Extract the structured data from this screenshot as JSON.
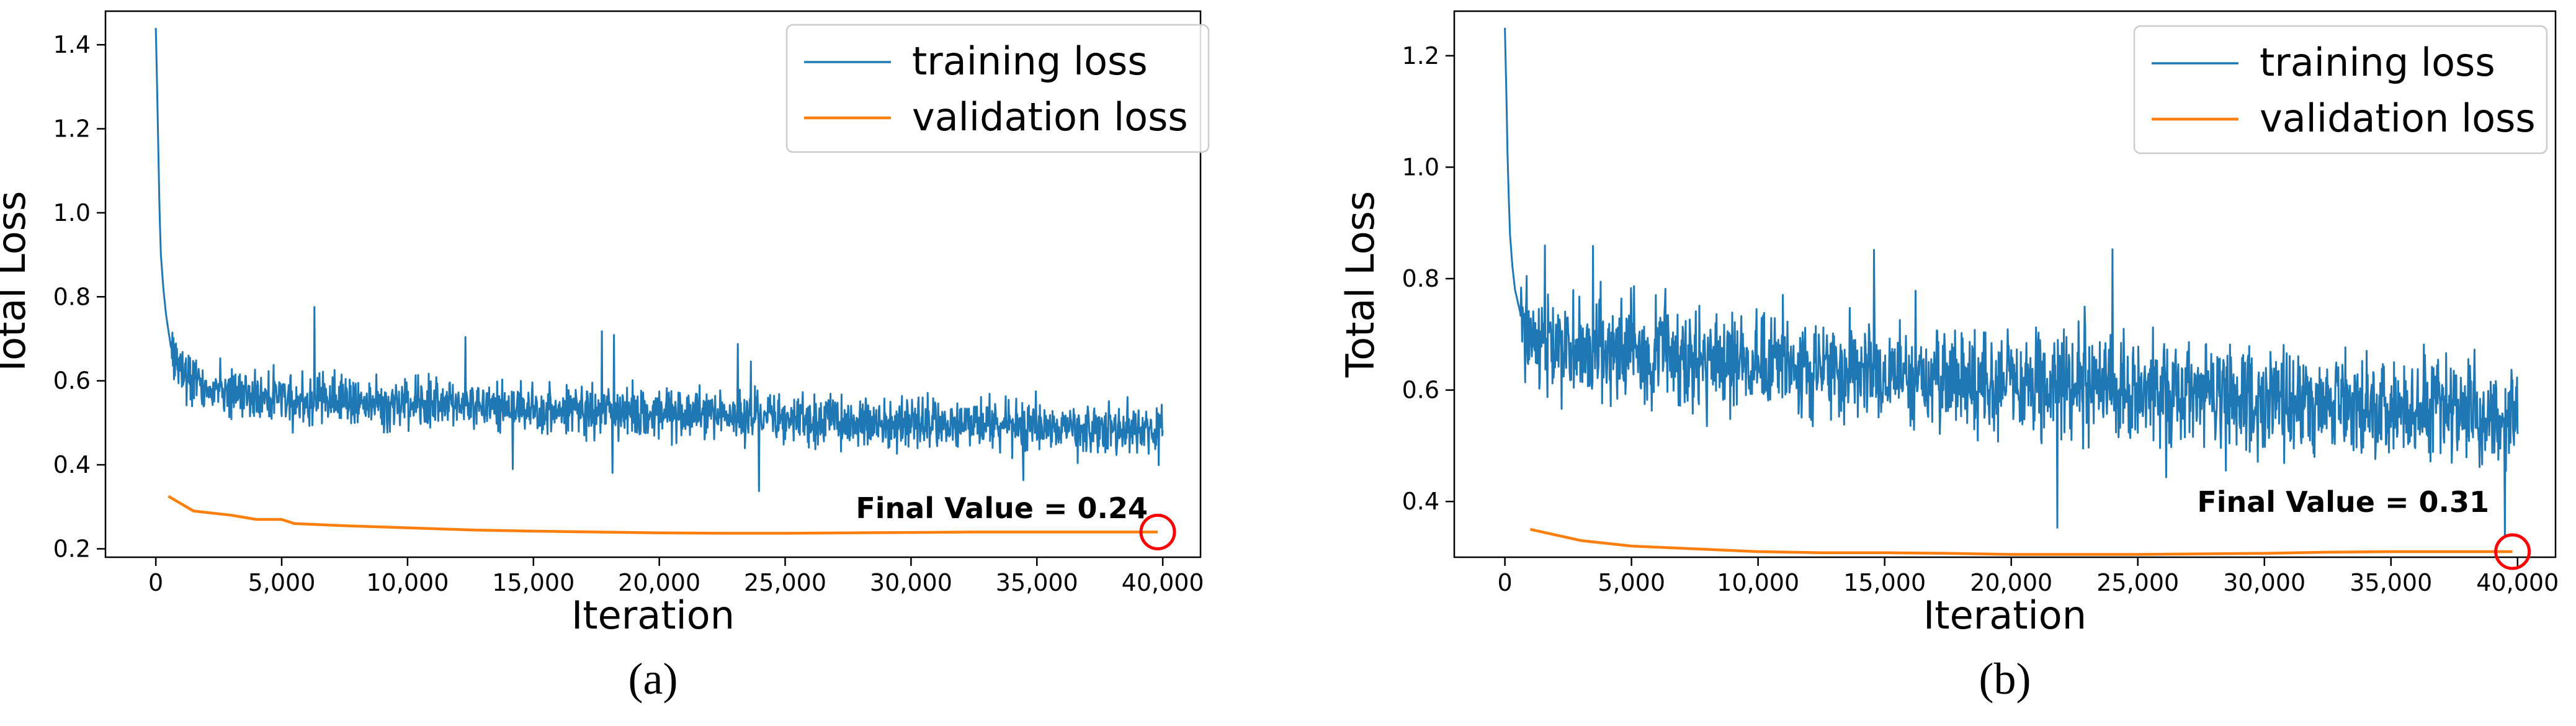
{
  "chart_data": [
    {
      "id": "a",
      "type": "line",
      "panel_label": "(a)",
      "xlabel": "Iteration",
      "ylabel": "Total Loss",
      "xlim": [
        -2000,
        41500
      ],
      "ylim": [
        0.18,
        1.48
      ],
      "x_ticks": [
        0,
        5000,
        10000,
        15000,
        20000,
        25000,
        30000,
        35000,
        40000
      ],
      "x_tick_labels": [
        "0",
        "5,000",
        "10,000",
        "15,000",
        "20,000",
        "25,000",
        "30,000",
        "35,000",
        "40,000"
      ],
      "y_ticks": [
        0.2,
        0.4,
        0.6,
        0.8,
        1.0,
        1.2,
        1.4
      ],
      "y_tick_labels": [
        "0.2",
        "0.4",
        "0.6",
        "0.8",
        "1.0",
        "1.2",
        "1.4"
      ],
      "grid": false,
      "legend_position": "top-right",
      "annotation": {
        "text": "Final Value = 0.24",
        "x": 39800,
        "y": 0.24,
        "marker": "circle",
        "color": "#ff0000"
      },
      "series": [
        {
          "name": "training loss",
          "color": "#1f77b4",
          "description_ref": "training_a",
          "points": [
            [
              0,
              1.44
            ],
            [
              50,
              1.3
            ],
            [
              100,
              1.15
            ],
            [
              150,
              1.0
            ],
            [
              200,
              0.9
            ],
            [
              300,
              0.82
            ],
            [
              400,
              0.76
            ],
            [
              500,
              0.72
            ],
            [
              600,
              0.68
            ],
            [
              700,
              0.66
            ],
            [
              800,
              0.64
            ],
            [
              1000,
              0.62
            ],
            [
              1500,
              0.6
            ],
            [
              2000,
              0.58
            ],
            [
              3000,
              0.57
            ],
            [
              4000,
              0.565
            ],
            [
              5000,
              0.56
            ],
            [
              7500,
              0.55
            ],
            [
              10000,
              0.545
            ],
            [
              15000,
              0.53
            ],
            [
              20000,
              0.52
            ],
            [
              25000,
              0.51
            ],
            [
              30000,
              0.5
            ],
            [
              35000,
              0.49
            ],
            [
              40000,
              0.48
            ]
          ],
          "noise_amplitude": 0.055,
          "spike_max": 0.8
        },
        {
          "name": "validation loss",
          "color": "#ff7f0e",
          "points": [
            [
              500,
              0.325
            ],
            [
              1500,
              0.29
            ],
            [
              3000,
              0.28
            ],
            [
              4000,
              0.27
            ],
            [
              5000,
              0.27
            ],
            [
              5500,
              0.26
            ],
            [
              7500,
              0.255
            ],
            [
              10000,
              0.25
            ],
            [
              12500,
              0.245
            ],
            [
              15000,
              0.242
            ],
            [
              17500,
              0.24
            ],
            [
              20000,
              0.238
            ],
            [
              22500,
              0.237
            ],
            [
              25000,
              0.237
            ],
            [
              27500,
              0.238
            ],
            [
              30000,
              0.239
            ],
            [
              32500,
              0.24
            ],
            [
              35000,
              0.24
            ],
            [
              37500,
              0.24
            ],
            [
              39800,
              0.24
            ]
          ]
        }
      ]
    },
    {
      "id": "b",
      "type": "line",
      "panel_label": "(b)",
      "xlabel": "Iteration",
      "ylabel": "Total Loss",
      "xlim": [
        -2000,
        41500
      ],
      "ylim": [
        0.3,
        1.28
      ],
      "x_ticks": [
        0,
        5000,
        10000,
        15000,
        20000,
        25000,
        30000,
        35000,
        40000
      ],
      "x_tick_labels": [
        "0",
        "5,000",
        "10,000",
        "15,000",
        "20,000",
        "25,000",
        "30,000",
        "35,000",
        "40,000"
      ],
      "y_ticks": [
        0.4,
        0.6,
        0.8,
        1.0,
        1.2
      ],
      "y_tick_labels": [
        "0.4",
        "0.6",
        "0.8",
        "1.0",
        "1.2"
      ],
      "grid": false,
      "legend_position": "top-right",
      "annotation": {
        "text": "Final Value = 0.31",
        "x": 39800,
        "y": 0.31,
        "marker": "circle",
        "color": "#ff0000"
      },
      "series": [
        {
          "name": "training loss",
          "color": "#1f77b4",
          "points": [
            [
              0,
              1.25
            ],
            [
              50,
              1.15
            ],
            [
              100,
              1.03
            ],
            [
              150,
              0.95
            ],
            [
              200,
              0.88
            ],
            [
              300,
              0.82
            ],
            [
              400,
              0.78
            ],
            [
              600,
              0.74
            ],
            [
              800,
              0.72
            ],
            [
              1000,
              0.7
            ],
            [
              1500,
              0.69
            ],
            [
              2000,
              0.68
            ],
            [
              3000,
              0.675
            ],
            [
              5000,
              0.67
            ],
            [
              7500,
              0.66
            ],
            [
              10000,
              0.65
            ],
            [
              15000,
              0.63
            ],
            [
              20000,
              0.61
            ],
            [
              25000,
              0.6
            ],
            [
              30000,
              0.58
            ],
            [
              35000,
              0.57
            ],
            [
              40000,
              0.55
            ]
          ],
          "noise_amplitude": 0.085,
          "spike_max": 0.86
        },
        {
          "name": "validation loss",
          "color": "#ff7f0e",
          "points": [
            [
              1000,
              0.35
            ],
            [
              2000,
              0.34
            ],
            [
              3000,
              0.33
            ],
            [
              5000,
              0.32
            ],
            [
              7500,
              0.315
            ],
            [
              10000,
              0.31
            ],
            [
              12500,
              0.308
            ],
            [
              15000,
              0.308
            ],
            [
              17500,
              0.307
            ],
            [
              20000,
              0.305
            ],
            [
              22500,
              0.305
            ],
            [
              25000,
              0.305
            ],
            [
              27500,
              0.306
            ],
            [
              30000,
              0.307
            ],
            [
              32500,
              0.309
            ],
            [
              35000,
              0.31
            ],
            [
              37500,
              0.31
            ],
            [
              39800,
              0.31
            ]
          ]
        }
      ]
    }
  ]
}
